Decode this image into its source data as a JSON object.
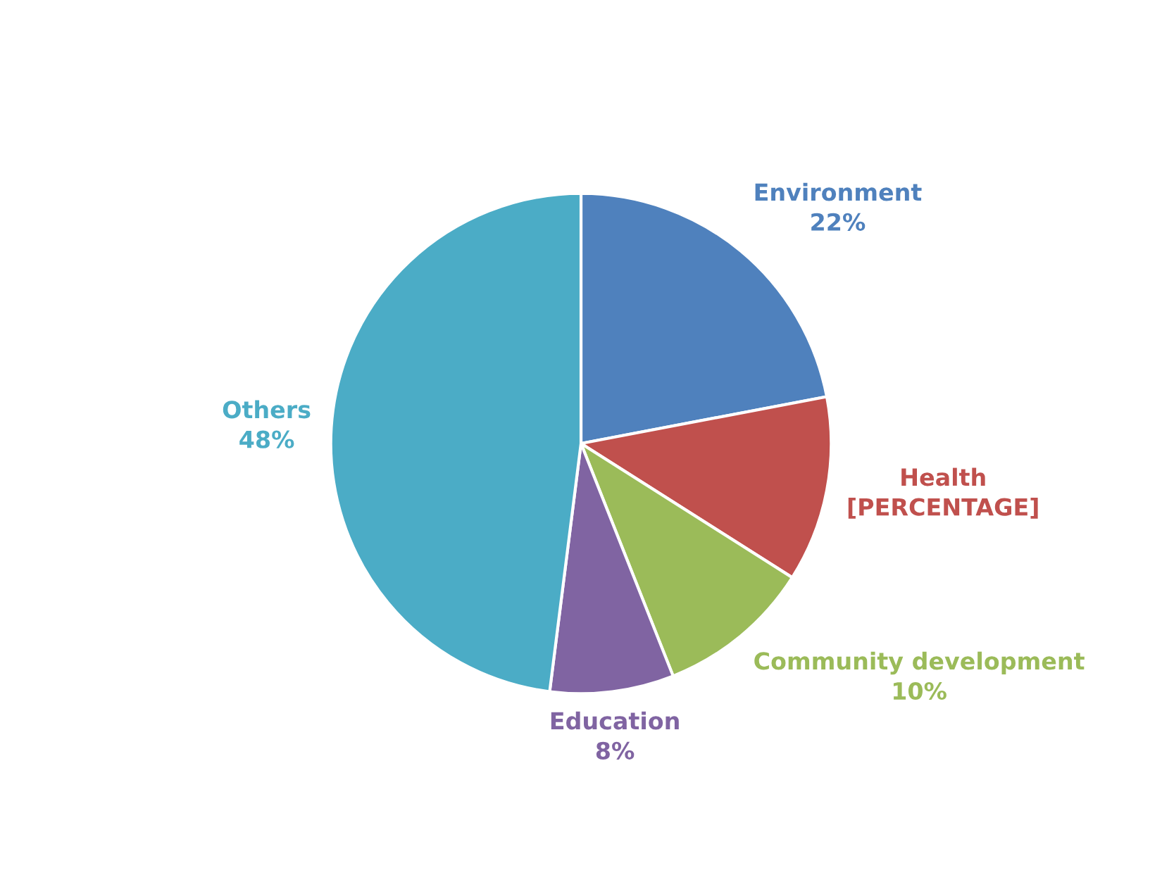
{
  "chart_data": {
    "type": "pie",
    "categories": [
      "Environment",
      "Health",
      "Community development",
      "Education",
      "Others"
    ],
    "values": [
      22,
      12,
      10,
      8,
      48
    ],
    "value_labels": [
      "22%",
      "[PERCENTAGE]",
      "10%",
      "8%",
      "48%"
    ],
    "colors": [
      "#4f81bd",
      "#c0504d",
      "#9bbb59",
      "#8064a2",
      "#4bacc6"
    ]
  }
}
